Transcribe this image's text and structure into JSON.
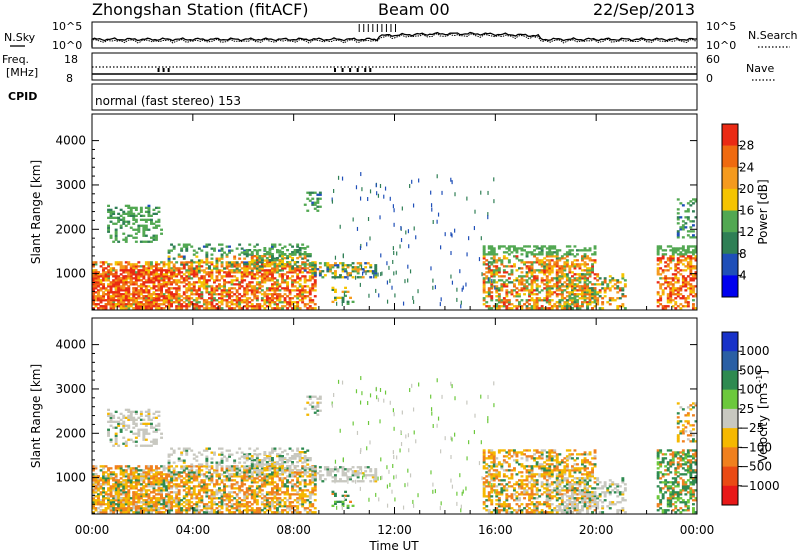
{
  "header": {
    "station": "Zhongshan Station (fitACF)",
    "beam": "Beam 00",
    "date": "22/Sep/2013"
  },
  "top_panels": {
    "nsky_label": "N.Sky",
    "nsearch_label": "N.Search",
    "nsky_ticks": [
      "10^5",
      "10^0"
    ],
    "nsearch_ticks": [
      "10^5",
      "10^0"
    ],
    "freq_label_line1": "Freq.",
    "freq_label_line2": "[MHz]",
    "freq_ticks": [
      "18",
      "8"
    ],
    "nave_label": "Nave",
    "nave_ticks": [
      "60",
      "0"
    ],
    "cpid_label": "CPID",
    "cpid_text": "normal (fast stereo) 153"
  },
  "chart_data": [
    {
      "type": "heatmap",
      "name": "power",
      "ylabel": "Slant Range [km]",
      "ylim": [
        180,
        4600
      ],
      "yticks": [
        "1000",
        "2000",
        "3000",
        "4000"
      ],
      "xlim": [
        0,
        24
      ],
      "xticks": [
        "00:00",
        "04:00",
        "08:00",
        "12:00",
        "16:00",
        "20:00",
        "00:00"
      ],
      "colorbar": {
        "label": "Power [dB]",
        "ticks": [
          "4",
          "8",
          "12",
          "16",
          "20",
          "24",
          "28"
        ],
        "colors": [
          "#0000ee",
          "#1f4fb8",
          "#2f7f55",
          "#52a852",
          "#f5c400",
          "#f59a1e",
          "#ef6a10",
          "#ea2a14"
        ]
      }
    },
    {
      "type": "heatmap",
      "name": "velocity",
      "ylabel": "Slant Range [km]",
      "ylim": [
        180,
        4600
      ],
      "yticks": [
        "1000",
        "2000",
        "3000",
        "4000"
      ],
      "xlim": [
        0,
        24
      ],
      "xticks": [
        "00:00",
        "04:00",
        "08:00",
        "12:00",
        "16:00",
        "20:00",
        "00:00"
      ],
      "xlabel": "Time UT",
      "colorbar": {
        "label_main": "Velocity",
        "label_unit": "[m s",
        "label_exp": "-1",
        "label_close": "]",
        "ticks": [
          "1000",
          "500",
          "100",
          "25",
          "−25",
          "−100",
          "−500",
          "−1000"
        ],
        "colors": [
          "#1832c8",
          "#2a5fa4",
          "#2e8a50",
          "#6cc83c",
          "#c8c8c0",
          "#f5b800",
          "#f0801e",
          "#ea4a14",
          "#e81818"
        ]
      }
    }
  ]
}
